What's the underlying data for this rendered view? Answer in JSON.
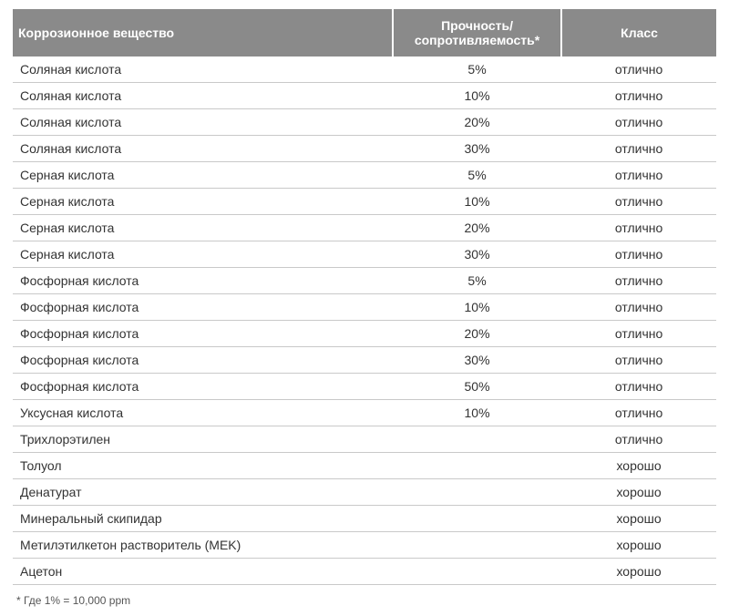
{
  "table": {
    "columns": [
      {
        "key": "substance",
        "label": "Коррозионное вещество",
        "class": "col-substance"
      },
      {
        "key": "strength",
        "label": "Прочность/\nсопротивляемость*",
        "class": "col-strength"
      },
      {
        "key": "class",
        "label": "Класс",
        "class": "col-class"
      }
    ],
    "rows": [
      {
        "substance": "Соляная кислота",
        "strength": "5%",
        "class": "отлично"
      },
      {
        "substance": "Соляная кислота",
        "strength": "10%",
        "class": "отлично"
      },
      {
        "substance": "Соляная кислота",
        "strength": "20%",
        "class": "отлично"
      },
      {
        "substance": "Соляная кислота",
        "strength": "30%",
        "class": "отлично"
      },
      {
        "substance": "Серная кислота",
        "strength": "5%",
        "class": "отлично"
      },
      {
        "substance": "Серная кислота",
        "strength": "10%",
        "class": "отлично"
      },
      {
        "substance": "Серная кислота",
        "strength": "20%",
        "class": "отлично"
      },
      {
        "substance": "Серная кислота",
        "strength": "30%",
        "class": "отлично"
      },
      {
        "substance": "Фосфорная кислота",
        "strength": "5%",
        "class": "отлично"
      },
      {
        "substance": "Фосфорная кислота",
        "strength": "10%",
        "class": "отлично"
      },
      {
        "substance": "Фосфорная кислота",
        "strength": "20%",
        "class": "отлично"
      },
      {
        "substance": "Фосфорная кислота",
        "strength": "30%",
        "class": "отлично"
      },
      {
        "substance": "Фосфорная кислота",
        "strength": "50%",
        "class": "отлично"
      },
      {
        "substance": "Уксусная кислота",
        "strength": "10%",
        "class": "отлично"
      },
      {
        "substance": "Трихлорэтилен",
        "strength": "",
        "class": "отлично"
      },
      {
        "substance": "Толуол",
        "strength": "",
        "class": "хорошо"
      },
      {
        "substance": "Денатурат",
        "strength": "",
        "class": "хорошо"
      },
      {
        "substance": "Минеральный скипидар",
        "strength": "",
        "class": "хорошо"
      },
      {
        "substance": "Метилэтилкетон растворитель (MEK)",
        "strength": "",
        "class": "хорошо"
      },
      {
        "substance": "Ацетон",
        "strength": "",
        "class": "хорошо"
      }
    ]
  },
  "footnote": "* Где 1% = 10,000 ppm",
  "styling": {
    "header_bg": "#8a8a8a",
    "header_text_color": "#ffffff",
    "body_text_color": "#333333",
    "row_border_color": "#c9c9c9",
    "header_fontsize": 14,
    "body_fontsize": 14,
    "footnote_fontsize": 12,
    "col_widths_percent": [
      54,
      24,
      22
    ]
  }
}
